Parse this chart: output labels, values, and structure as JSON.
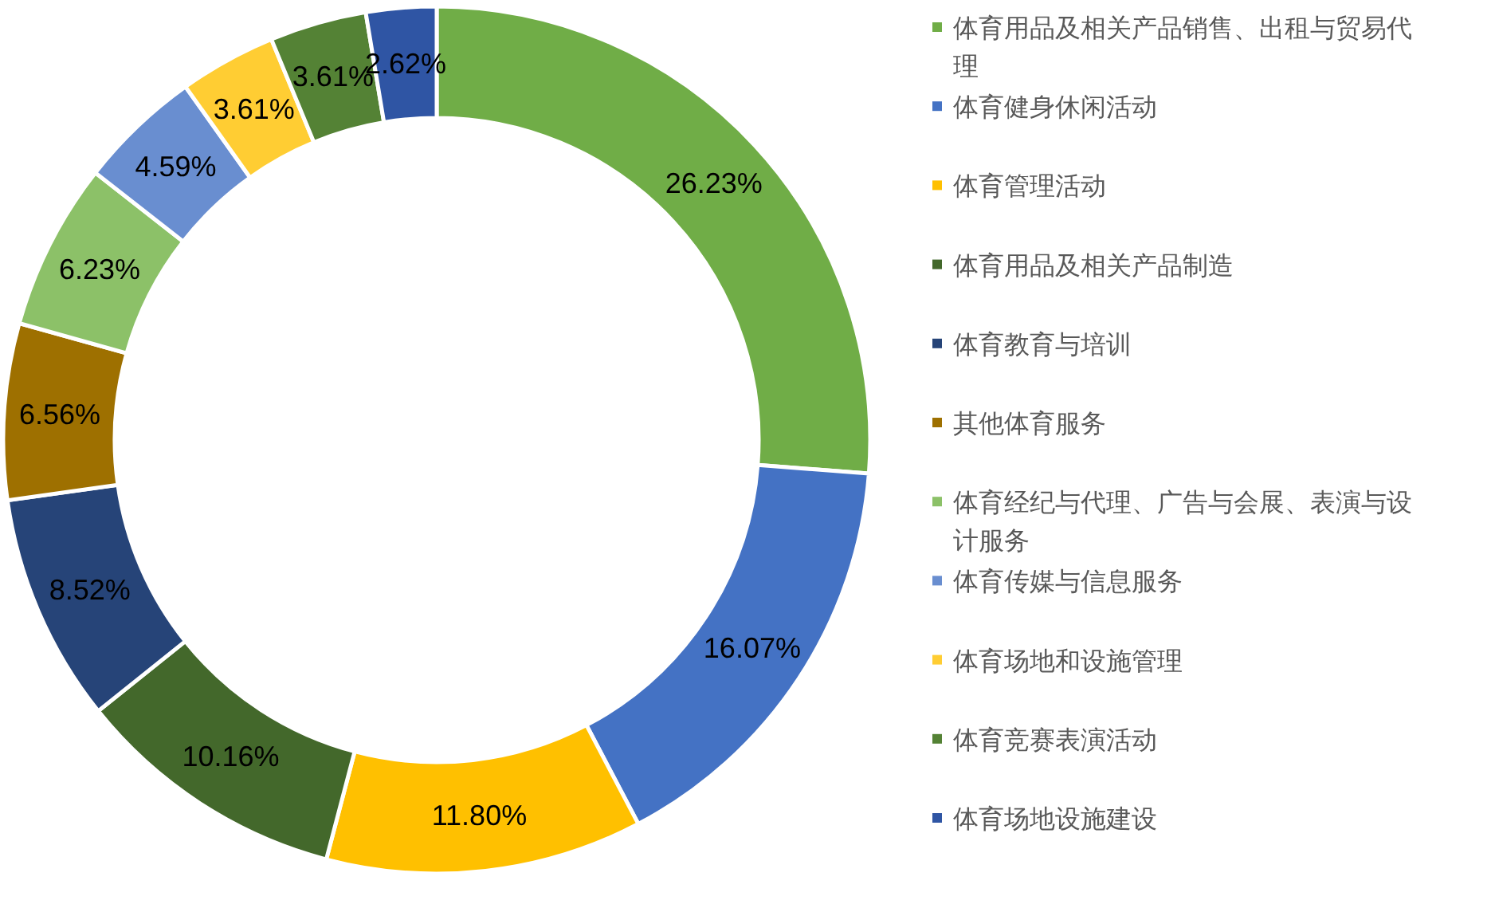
{
  "chart_data": {
    "type": "donut",
    "categories": [
      "体育用品及相关产品销售、出租与贸易代理",
      "体育健身休闲活动",
      "体育管理活动",
      "体育用品及相关产品制造",
      "体育教育与培训",
      "其他体育服务",
      "体育经纪与代理、广告与会展、表演与设计服务",
      "体育传媒与信息服务",
      "体育场地和设施管理",
      "体育竞赛表演活动",
      "体育场地设施建设"
    ],
    "values": [
      26.23,
      16.07,
      11.8,
      10.16,
      8.52,
      6.56,
      6.23,
      4.59,
      3.61,
      3.61,
      2.62
    ],
    "value_labels": [
      "26.23%",
      "16.07%",
      "11.80%",
      "10.16%",
      "8.52%",
      "6.56%",
      "6.23%",
      "4.59%",
      "3.61%",
      "3.61%",
      "2.62%"
    ],
    "colors": [
      "#70ad47",
      "#4472c4",
      "#ffc000",
      "#43682b",
      "#264478",
      "#9e7000",
      "#8cc168",
      "#698ed0",
      "#ffcd33",
      "#548235",
      "#2f55a4"
    ],
    "legend": "right"
  }
}
